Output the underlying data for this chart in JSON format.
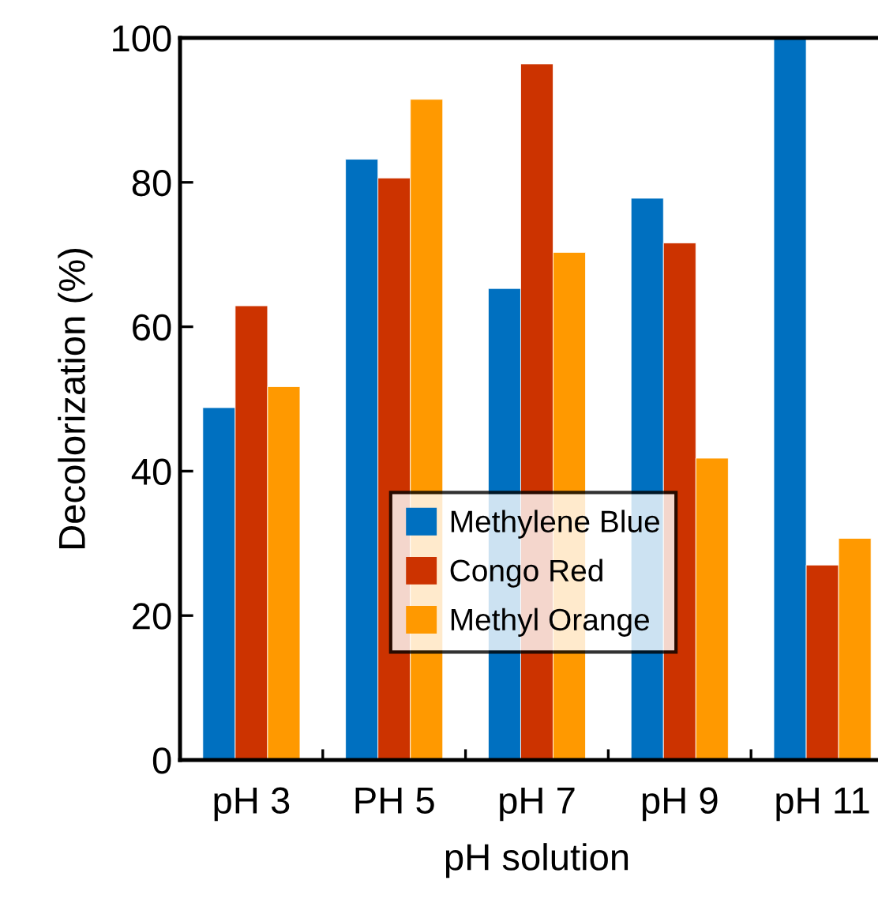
{
  "chart_data": {
    "type": "bar",
    "xlabel": "pH solution",
    "ylabel": "Decolorization (%)",
    "categories": [
      "pH 3",
      "PH 5",
      "pH 7",
      "pH 9",
      "pH 11"
    ],
    "series": [
      {
        "name": "Methylene Blue",
        "color": "#0070c0",
        "values": [
          48.8,
          83.2,
          65.3,
          77.8,
          100
        ]
      },
      {
        "name": "Congo Red",
        "color": "#cc3300",
        "values": [
          62.9,
          80.6,
          96.4,
          71.6,
          27.0
        ]
      },
      {
        "name": "Methyl Orange",
        "color": "#ff9900",
        "values": [
          51.7,
          91.5,
          70.3,
          41.8,
          30.7
        ]
      }
    ],
    "ylim": [
      0,
      100
    ],
    "yticks": [
      0,
      20,
      40,
      60,
      80,
      100
    ],
    "grid": false,
    "legend": "center"
  }
}
